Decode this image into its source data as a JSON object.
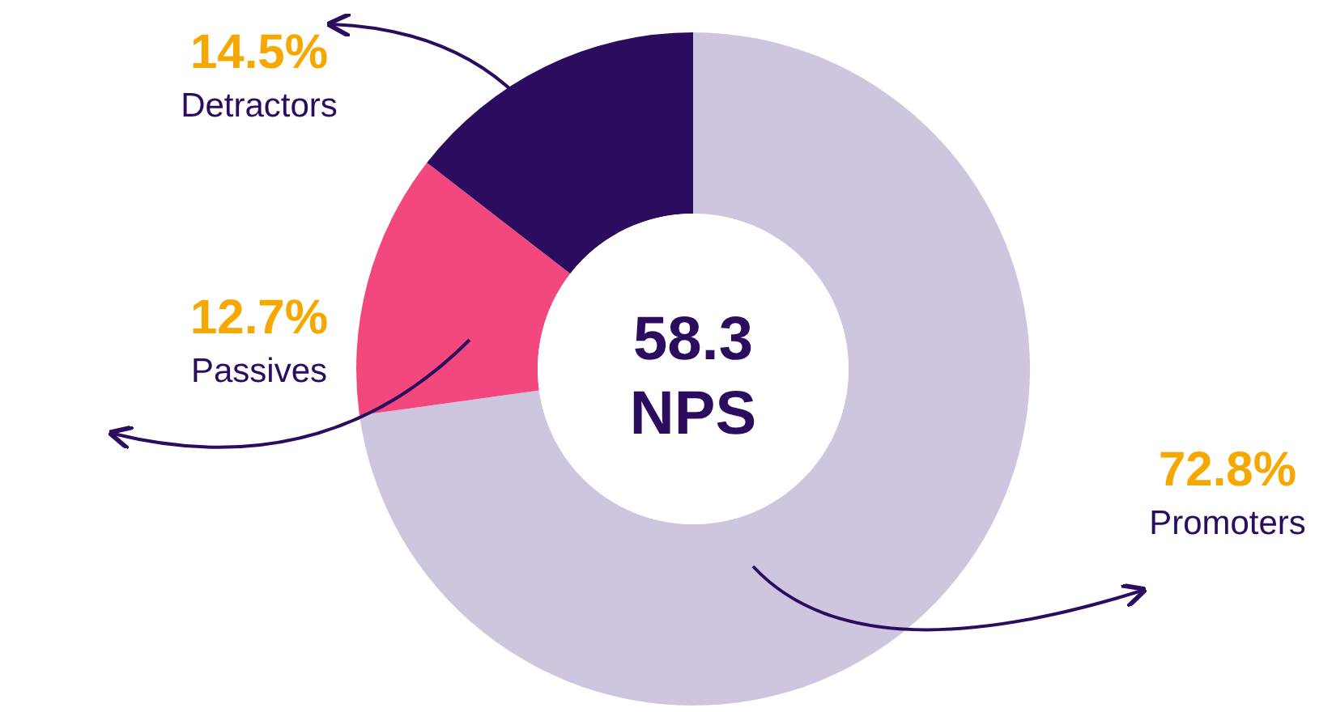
{
  "chart_data": {
    "type": "donut",
    "categories": [
      "Promoters",
      "Passives",
      "Detractors"
    ],
    "values": [
      72.8,
      12.7,
      14.5
    ],
    "colors": [
      "#cec6df",
      "#f2487d",
      "#2b0c5f"
    ],
    "value_labels": [
      "72.8%",
      "12.7%",
      "14.5%"
    ],
    "annotations": [
      "58.3",
      "NPS"
    ]
  }
}
